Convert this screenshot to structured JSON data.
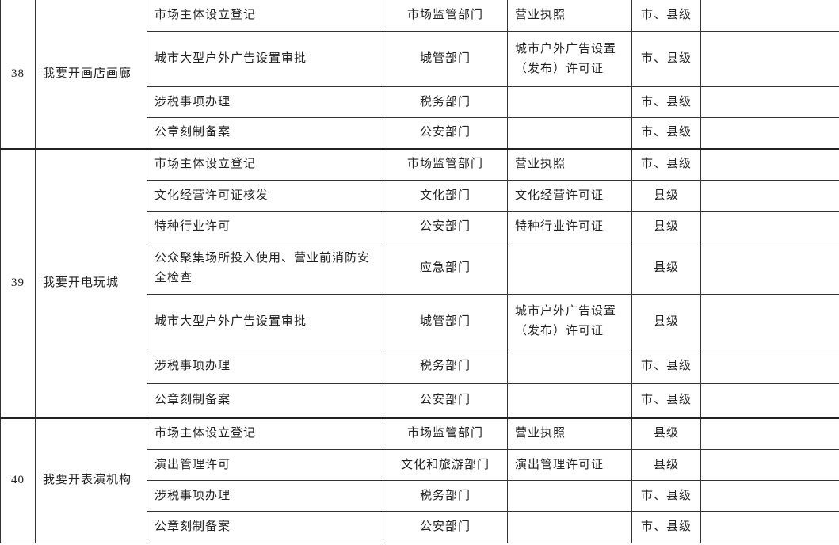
{
  "groups": [
    {
      "number": "38",
      "name": "我要开画店画廊",
      "items": [
        {
          "item": "市场主体设立登记",
          "department": "市场监管部门",
          "license": "营业执照",
          "level": "市、县级",
          "note": ""
        },
        {
          "item": "城市大型户外广告设置审批",
          "department": "城管部门",
          "license": "城市户外广告设置（发布）许可证",
          "level": "市、县级",
          "note": ""
        },
        {
          "item": "涉税事项办理",
          "department": "税务部门",
          "license": "",
          "level": "市、县级",
          "note": ""
        },
        {
          "item": "公章刻制备案",
          "department": "公安部门",
          "license": "",
          "level": "市、县级",
          "note": ""
        }
      ]
    },
    {
      "number": "39",
      "name": "我要开电玩城",
      "items": [
        {
          "item": "市场主体设立登记",
          "department": "市场监管部门",
          "license": "营业执照",
          "level": "市、县级",
          "note": ""
        },
        {
          "item": "文化经营许可证核发",
          "department": "文化部门",
          "license": "文化经营许可证",
          "level": "县级",
          "note": ""
        },
        {
          "item": "特种行业许可",
          "department": "公安部门",
          "license": "特种行业许可证",
          "level": "县级",
          "note": ""
        },
        {
          "item": "公众聚集场所投入使用、营业前消防安全检查",
          "department": "应急部门",
          "license": "",
          "level": "县级",
          "note": ""
        },
        {
          "item": "城市大型户外广告设置审批",
          "department": "城管部门",
          "license": "城市户外广告设置（发布）许可证",
          "level": "县级",
          "note": ""
        },
        {
          "item": "涉税事项办理",
          "department": "税务部门",
          "license": "",
          "level": "市、县级",
          "note": ""
        },
        {
          "item": "公章刻制备案",
          "department": "公安部门",
          "license": "",
          "level": "市、县级",
          "note": ""
        }
      ]
    },
    {
      "number": "40",
      "name": "我要开表演机构",
      "items": [
        {
          "item": "市场主体设立登记",
          "department": "市场监管部门",
          "license": "营业执照",
          "level": "县级",
          "note": ""
        },
        {
          "item": "演出管理许可",
          "department": "文化和旅游部门",
          "license": "演出管理许可证",
          "level": "县级",
          "note": ""
        },
        {
          "item": "涉税事项办理",
          "department": "税务部门",
          "license": "",
          "level": "市、县级",
          "note": ""
        },
        {
          "item": "公章刻制备案",
          "department": "公安部门",
          "license": "",
          "level": "市、县级",
          "note": ""
        }
      ]
    }
  ]
}
